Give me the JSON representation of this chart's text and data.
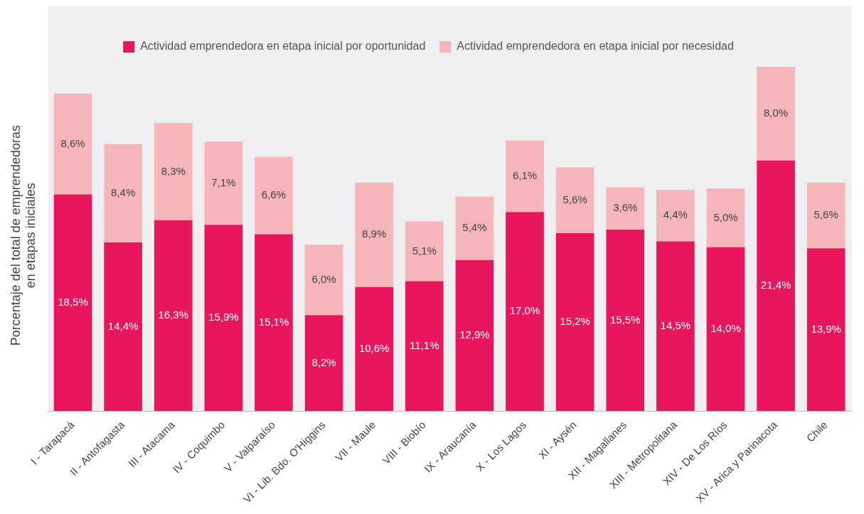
{
  "chart_data": {
    "type": "bar",
    "stacked": true,
    "ylabel": "Porcentaje del total de emprendedoras\nen etapas iniciales",
    "legend": "top",
    "grid": false,
    "categories": [
      "I - Tarapacá",
      "II - Antofagasta",
      "III - Atacama",
      "IV - Coquimbo",
      "V - Valparaíso",
      "VI - Lib. Bdo. O'Higgins",
      "VII - Maule",
      "VIII - Biobío",
      "IX - Araucanía",
      "X - Los Lagos",
      "XI - Aysén",
      "XII - Magallanes",
      "XIII - Metropolitana",
      "XIV - De Los Ríos",
      "XV - Arica y Parinacota",
      "Chile"
    ],
    "series": [
      {
        "name": "Actividad emprendedora en etapa inicial por oportunidad",
        "color": "#e8175d",
        "values": [
          18.5,
          14.4,
          16.3,
          15.9,
          15.1,
          8.2,
          10.6,
          11.1,
          12.9,
          17.0,
          15.2,
          15.5,
          14.5,
          14.0,
          21.4,
          13.9
        ],
        "value_labels": [
          "18,5%",
          "14,4%",
          "16,3%",
          "15,9%",
          "15,1%",
          "8,2%",
          "10,6%",
          "11,1%",
          "12,9%",
          "17,0%",
          "15,2%",
          "15,5%",
          "14,5%",
          "14,0%",
          "21,4%",
          "13,9%"
        ]
      },
      {
        "name": "Actividad emprendedora en etapa inicial por necesidad",
        "color": "#f5b5b9",
        "values": [
          8.6,
          8.4,
          8.3,
          7.1,
          6.6,
          6.0,
          8.9,
          5.1,
          5.4,
          6.1,
          5.6,
          3.6,
          4.4,
          5.0,
          8.0,
          5.6
        ],
        "value_labels": [
          "8,6%",
          "8,4%",
          "8,3%",
          "7,1%",
          "6,6%",
          "6,0%",
          "8,9%",
          "5,1%",
          "5,4%",
          "6,1%",
          "5,6%",
          "3,6%",
          "4,4%",
          "5,0%",
          "8,0%",
          "5,6%"
        ]
      }
    ]
  }
}
